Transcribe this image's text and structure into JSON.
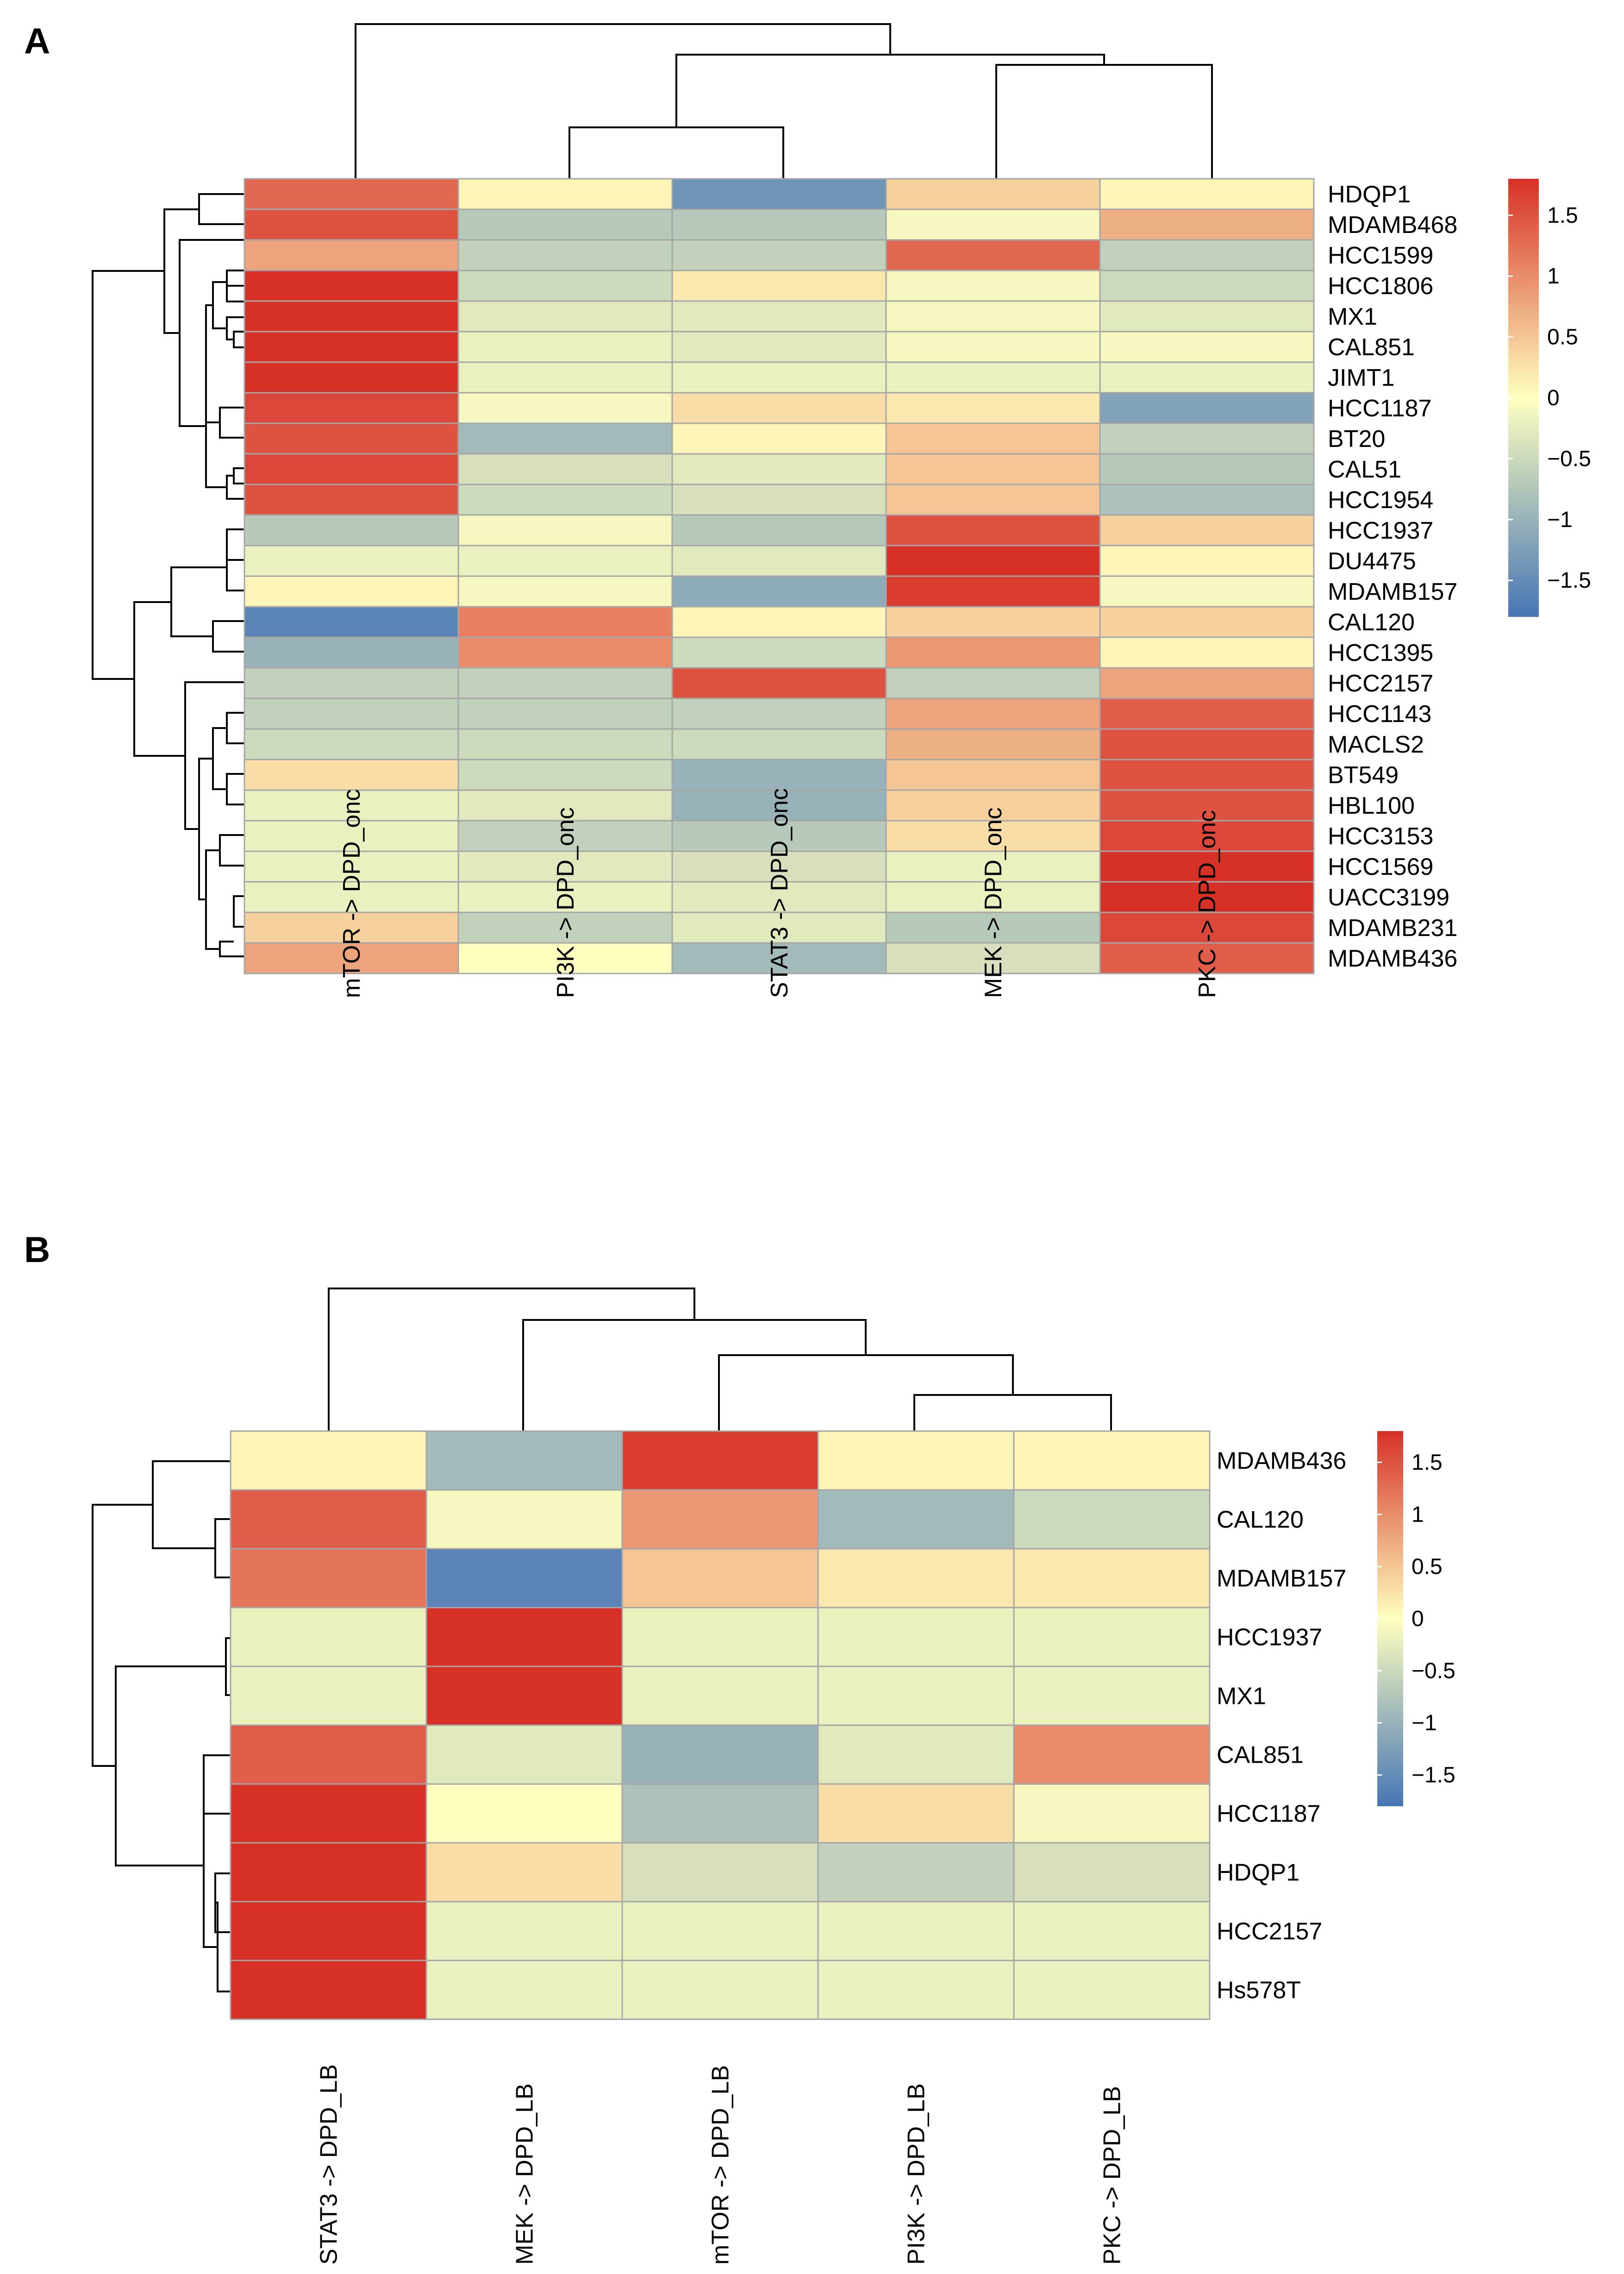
{
  "chart_data": [
    {
      "type": "heatmap",
      "panel": "A",
      "rows": [
        "HDQP1",
        "MDAMB468",
        "HCC1599",
        "HCC1806",
        "MX1",
        "CAL851",
        "JIMT1",
        "HCC1187",
        "BT20",
        "CAL51",
        "HCC1954",
        "HCC1937",
        "DU4475",
        "MDAMB157",
        "CAL120",
        "HCC1395",
        "HCC2157",
        "HCC1143",
        "MACLS2",
        "BT549",
        "HBL100",
        "HCC3153",
        "HCC1569",
        "UACC3199",
        "MDAMB231",
        "MDAMB436"
      ],
      "columns": [
        "mTOR -> DPD_onc",
        "PI3K -> DPD_onc",
        "STAT3 -> DPD_onc",
        "MEK -> DPD_onc",
        "PKC -> DPD_onc"
      ],
      "values": [
        [
          1.3,
          0.1,
          -1.4,
          0.4,
          0.1
        ],
        [
          1.5,
          -0.7,
          -0.7,
          -0.1,
          0.7
        ],
        [
          0.8,
          -0.6,
          -0.6,
          1.3,
          -0.6
        ],
        [
          1.8,
          -0.5,
          0.2,
          -0.1,
          -0.5
        ],
        [
          1.8,
          -0.3,
          -0.3,
          -0.1,
          -0.3
        ],
        [
          1.8,
          -0.2,
          -0.3,
          -0.1,
          -0.1
        ],
        [
          1.8,
          -0.2,
          -0.2,
          -0.2,
          -0.2
        ],
        [
          1.6,
          -0.1,
          0.3,
          0.2,
          -1.2
        ],
        [
          1.5,
          -0.9,
          0.1,
          0.5,
          -0.6
        ],
        [
          1.6,
          -0.4,
          -0.3,
          0.5,
          -0.7
        ],
        [
          1.5,
          -0.5,
          -0.4,
          0.5,
          -0.8
        ],
        [
          -0.7,
          -0.1,
          -0.7,
          1.5,
          0.4
        ],
        [
          -0.2,
          -0.2,
          -0.3,
          1.8,
          0.1
        ],
        [
          0.1,
          -0.1,
          -1.1,
          1.7,
          -0.1
        ],
        [
          -1.6,
          1.1,
          0.1,
          0.4,
          0.4
        ],
        [
          -1.0,
          1.0,
          -0.5,
          0.9,
          0.1
        ],
        [
          -0.6,
          -0.6,
          1.5,
          -0.6,
          0.8
        ],
        [
          -0.6,
          -0.6,
          -0.6,
          0.8,
          1.4
        ],
        [
          -0.5,
          -0.5,
          -0.5,
          0.7,
          1.5
        ],
        [
          0.3,
          -0.5,
          -1.0,
          0.5,
          1.5
        ],
        [
          -0.2,
          -0.3,
          -1.0,
          0.4,
          1.5
        ],
        [
          -0.2,
          -0.6,
          -0.7,
          0.3,
          1.6
        ],
        [
          -0.2,
          -0.3,
          -0.4,
          -0.2,
          1.8
        ],
        [
          -0.2,
          -0.2,
          -0.3,
          -0.2,
          1.8
        ],
        [
          0.4,
          -0.6,
          -0.3,
          -0.7,
          1.6
        ],
        [
          0.8,
          0.0,
          -0.9,
          -0.4,
          1.4
        ]
      ],
      "color_scale": {
        "min": -1.8,
        "max": 1.8,
        "low": "#4575b4",
        "mid": "#ffffbf",
        "high": "#d73027"
      },
      "legend_ticks": [
        1.5,
        1,
        0.5,
        0,
        -0.5,
        -1,
        -1.5
      ],
      "legend_labels": [
        "1.5",
        "1",
        "0.5",
        "0",
        "−0.5",
        "−1",
        "−1.5"
      ],
      "legend_position": "right"
    },
    {
      "type": "heatmap",
      "panel": "B",
      "rows": [
        "MDAMB436",
        "CAL120",
        "MDAMB157",
        "HCC1937",
        "MX1",
        "CAL851",
        "HCC1187",
        "HDQP1",
        "HCC2157",
        "Hs578T"
      ],
      "columns": [
        "STAT3 -> DPD_LB",
        "MEK -> DPD_LB",
        "mTOR -> DPD_LB",
        "PI3K -> DPD_LB",
        "PKC -> DPD_LB"
      ],
      "values": [
        [
          0.1,
          -0.9,
          1.7,
          0.1,
          0.1
        ],
        [
          1.4,
          -0.1,
          0.9,
          -0.9,
          -0.5
        ],
        [
          1.2,
          -1.6,
          0.5,
          0.2,
          0.2
        ],
        [
          -0.2,
          1.8,
          -0.2,
          -0.2,
          -0.2
        ],
        [
          -0.2,
          1.8,
          -0.2,
          -0.2,
          -0.2
        ],
        [
          1.4,
          -0.3,
          -1.0,
          -0.3,
          1.0
        ],
        [
          1.8,
          0.0,
          -0.8,
          0.3,
          -0.1
        ],
        [
          1.8,
          0.3,
          -0.4,
          -0.6,
          -0.4
        ],
        [
          1.8,
          -0.2,
          -0.2,
          -0.2,
          -0.2
        ],
        [
          1.8,
          -0.2,
          -0.2,
          -0.2,
          -0.2
        ]
      ],
      "color_scale": {
        "min": -1.8,
        "max": 1.8,
        "low": "#4575b4",
        "mid": "#ffffbf",
        "high": "#d73027"
      },
      "legend_ticks": [
        1.5,
        1,
        0.5,
        0,
        -0.5,
        -1,
        -1.5
      ],
      "legend_labels": [
        "1.5",
        "1",
        "0.5",
        "0",
        "−0.5",
        "−1",
        "−1.5"
      ],
      "legend_position": "right"
    }
  ]
}
